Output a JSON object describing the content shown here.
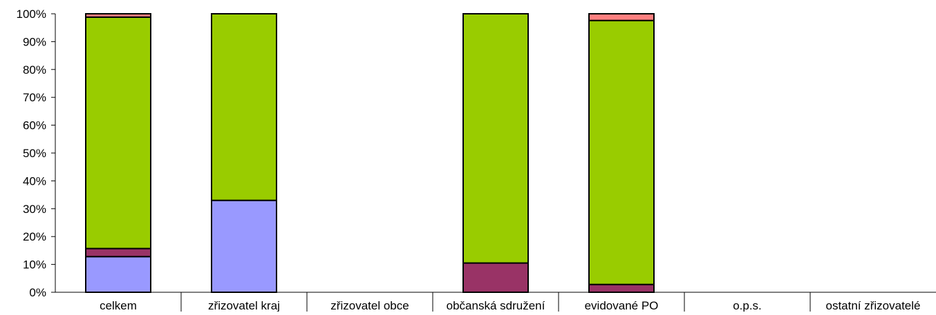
{
  "chart_data": {
    "type": "bar",
    "stacked": true,
    "percent_stacked": true,
    "categories": [
      "celkem",
      "zřizovatel kraj",
      "zřizovatel obce",
      "občanská sdružení",
      "evidované PO",
      "o.p.s.",
      "ostatní zřizovatelé"
    ],
    "series": [
      {
        "color": "#9999FF",
        "values": [
          12.8,
          33.0,
          0,
          0,
          0,
          0,
          0
        ]
      },
      {
        "color": "#993366",
        "values": [
          2.9,
          0,
          0,
          10.5,
          2.8,
          0,
          0
        ]
      },
      {
        "color": "#99CC00",
        "values": [
          83.1,
          67.0,
          0,
          89.5,
          94.8,
          0,
          0
        ]
      },
      {
        "color": "#FF8080",
        "values": [
          1.2,
          0,
          0,
          0,
          2.4,
          0,
          0
        ]
      }
    ],
    "ylim": [
      0,
      100
    ],
    "y_ticks": [
      "0%",
      "10%",
      "20%",
      "30%",
      "40%",
      "50%",
      "60%",
      "70%",
      "80%",
      "90%",
      "100%"
    ],
    "title": "",
    "xlabel": "",
    "ylabel": "",
    "grid": false,
    "legend": "none"
  }
}
